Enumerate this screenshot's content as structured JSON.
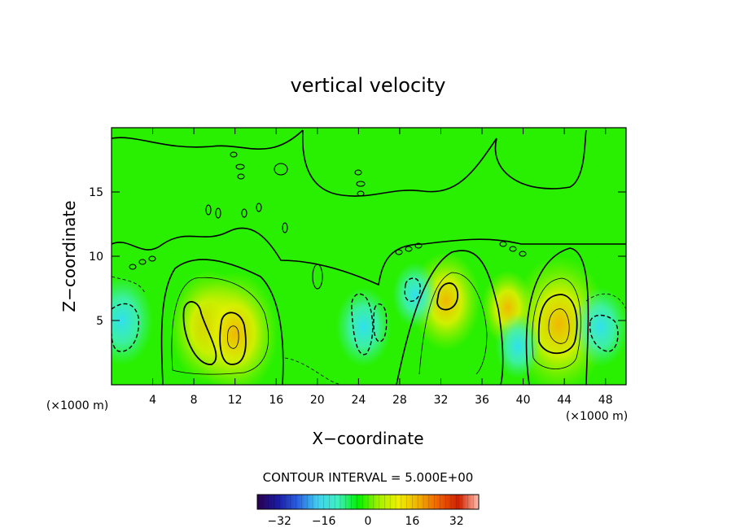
{
  "chart_data": {
    "type": "heatmap",
    "title": "vertical velocity",
    "xlabel": "X−coordinate",
    "ylabel": "Z−coordinate",
    "x_unit_left": "(×1000 m)",
    "x_unit_right": "(×1000 m)",
    "xlim": [
      0,
      50
    ],
    "ylim": [
      0,
      20
    ],
    "x_ticks": [
      4,
      8,
      12,
      16,
      20,
      24,
      28,
      32,
      36,
      40,
      44,
      48
    ],
    "y_ticks": [
      5,
      10,
      15
    ],
    "contour_interval_label": "CONTOUR INTERVAL = 5.000E+00",
    "colorbar": {
      "range": [
        -40,
        40
      ],
      "ticks": [
        -32,
        -16,
        0,
        16,
        32
      ],
      "colors": [
        "#2a0050",
        "#1a1aa0",
        "#2a60e0",
        "#40d0f0",
        "#40f0c0",
        "#00f000",
        "#a0f000",
        "#f0f000",
        "#f0b000",
        "#f06000",
        "#d02000",
        "#ffc0b0"
      ]
    },
    "features": [
      {
        "kind": "updraft",
        "x": 9.5,
        "z": 4.5,
        "w": 15
      },
      {
        "kind": "updraft",
        "x": 12,
        "z": 4.0,
        "w": 17
      },
      {
        "kind": "updraft",
        "x": 32.5,
        "z": 6.5,
        "w": 12
      },
      {
        "kind": "updraft",
        "x": 43.5,
        "z": 4.7,
        "w": 20
      },
      {
        "kind": "updraft",
        "x": 38.5,
        "z": 6.0,
        "w": 7
      },
      {
        "kind": "downdraft",
        "x": 1,
        "z": 5,
        "w": -10
      },
      {
        "kind": "downdraft",
        "x": 24.5,
        "z": 4.5,
        "w": -8
      },
      {
        "kind": "downdraft",
        "x": 29.5,
        "z": 7.0,
        "w": -5
      },
      {
        "kind": "downdraft",
        "x": 47.5,
        "z": 4.5,
        "w": -8
      },
      {
        "kind": "downdraft",
        "x": 39.5,
        "z": 3.0,
        "w": -5
      }
    ]
  }
}
